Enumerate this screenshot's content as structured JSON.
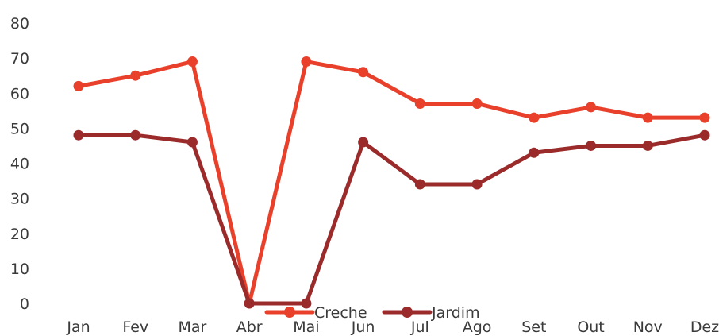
{
  "chart_data": {
    "type": "line",
    "categories": [
      "Jan",
      "Fev",
      "Mar",
      "Abr",
      "Mai",
      "Jun",
      "Jul",
      "Ago",
      "Set",
      "Out",
      "Nov",
      "Dez"
    ],
    "series": [
      {
        "name": "Creche",
        "color": "#e8402a",
        "values": [
          62,
          65,
          69,
          0,
          69,
          66,
          57,
          57,
          53,
          56,
          53,
          53
        ]
      },
      {
        "name": "Jardim",
        "color": "#9b2b2b",
        "values": [
          48,
          48,
          46,
          0,
          0,
          46,
          34,
          34,
          43,
          45,
          45,
          48
        ]
      }
    ],
    "y_ticks": [
      0,
      10,
      20,
      30,
      40,
      50,
      60,
      70,
      80
    ],
    "ylim": [
      0,
      80
    ],
    "grid": false,
    "legend_position": "bottom-center"
  }
}
